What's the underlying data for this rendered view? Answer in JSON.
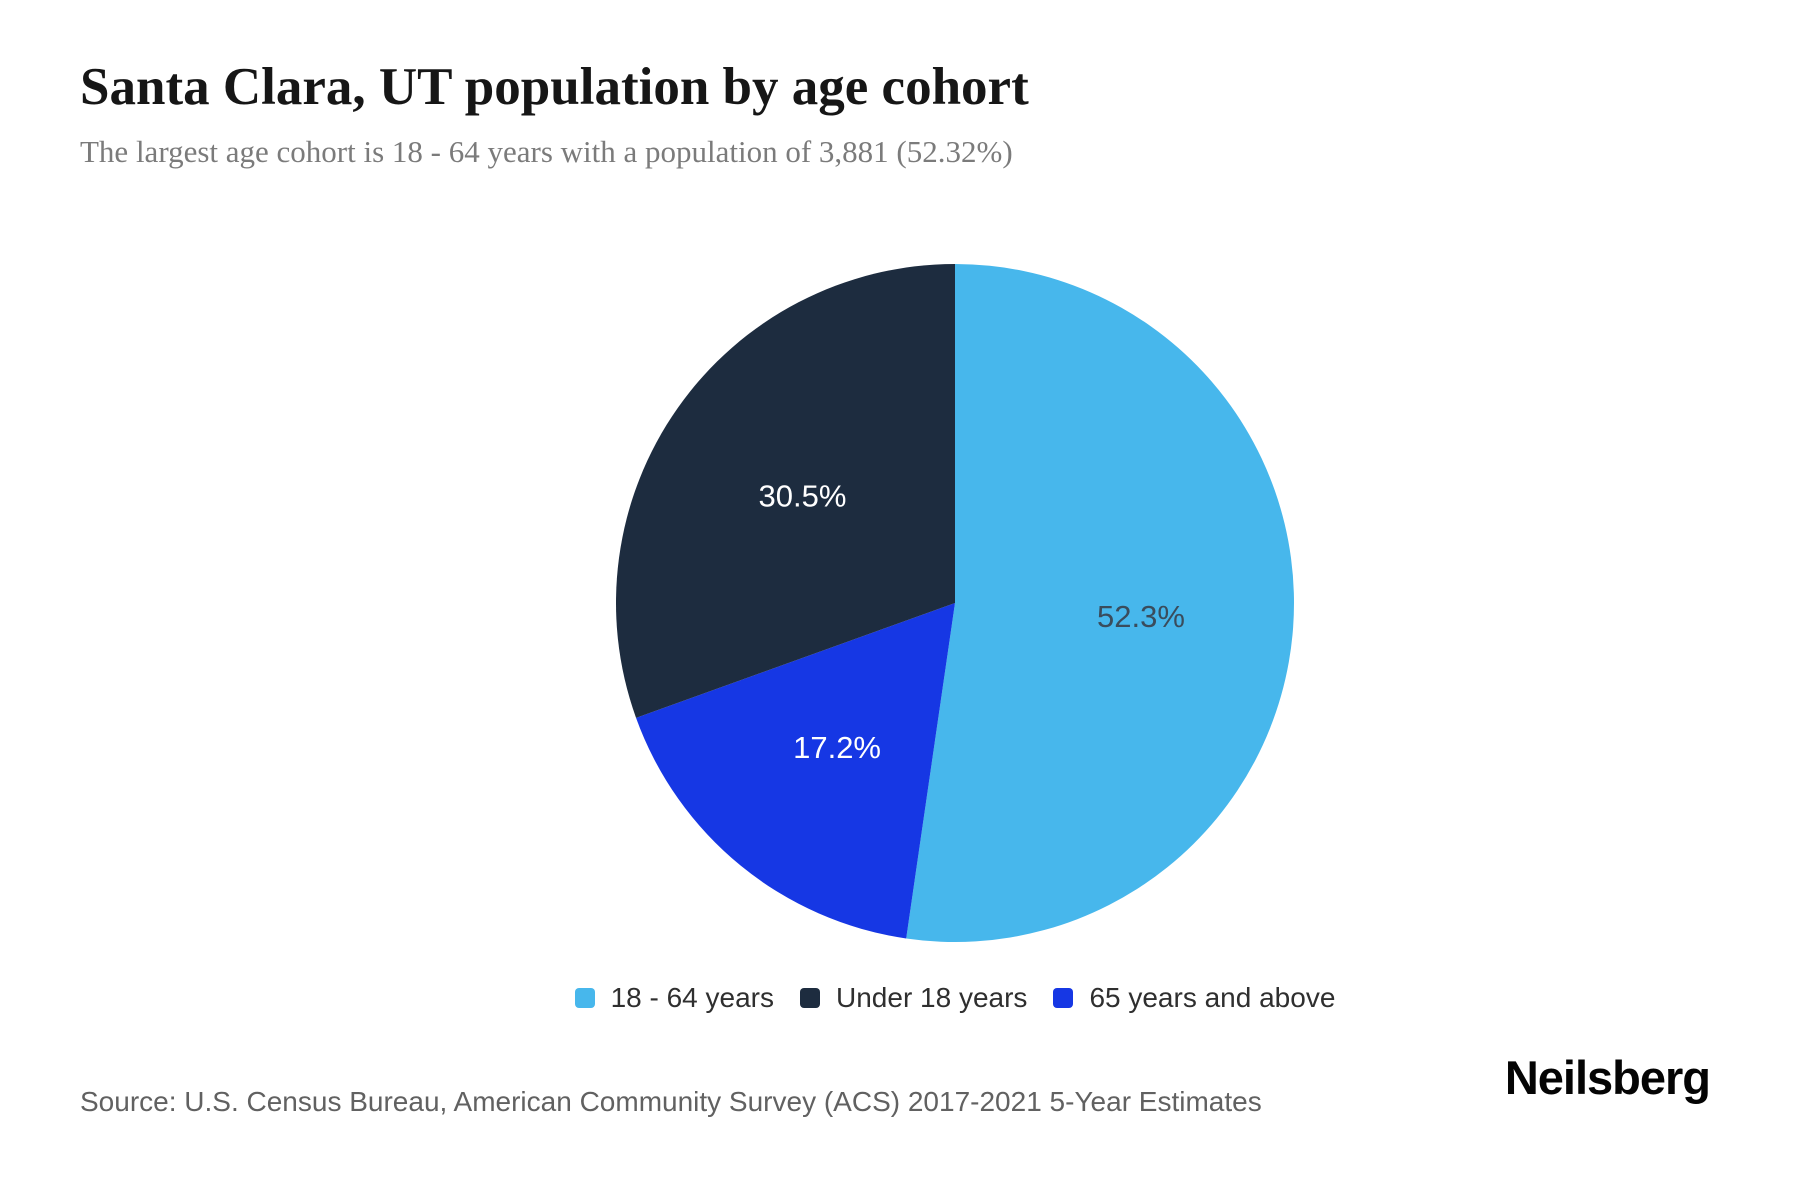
{
  "header": {
    "title": "Santa Clara, UT population by age cohort",
    "subtitle": "The largest age cohort is 18 - 64 years with a population of 3,881 (52.32%)"
  },
  "chart_data": {
    "type": "pie",
    "title": "Santa Clara, UT population by age cohort",
    "direction": "clockwise",
    "start_angle": "12 o'clock",
    "slices": [
      {
        "label": "18 - 64 years",
        "value": 52.3,
        "display": "52.3%",
        "color": "#47b7ec",
        "label_color": "#3a4c5c"
      },
      {
        "label": "65 years and above",
        "value": 17.2,
        "display": "17.2%",
        "color": "#1637e4",
        "label_color": "#ffffff"
      },
      {
        "label": "Under 18 years",
        "value": 30.5,
        "display": "30.5%",
        "color": "#1d2c3f",
        "label_color": "#ffffff"
      }
    ],
    "legend_position": "bottom",
    "highlight": {
      "largest_cohort": "18 - 64 years",
      "population": "3,881",
      "share": "52.32%"
    }
  },
  "legend": {
    "items": [
      {
        "label": "18 - 64 years",
        "color": "#47b7ec"
      },
      {
        "label": "Under 18 years",
        "color": "#1d2c3f"
      },
      {
        "label": "65 years and above",
        "color": "#1637e4"
      }
    ]
  },
  "footer": {
    "source": "Source: U.S. Census Bureau, American Community Survey (ACS) 2017-2021 5-Year Estimates",
    "brand": "Neilsberg"
  }
}
